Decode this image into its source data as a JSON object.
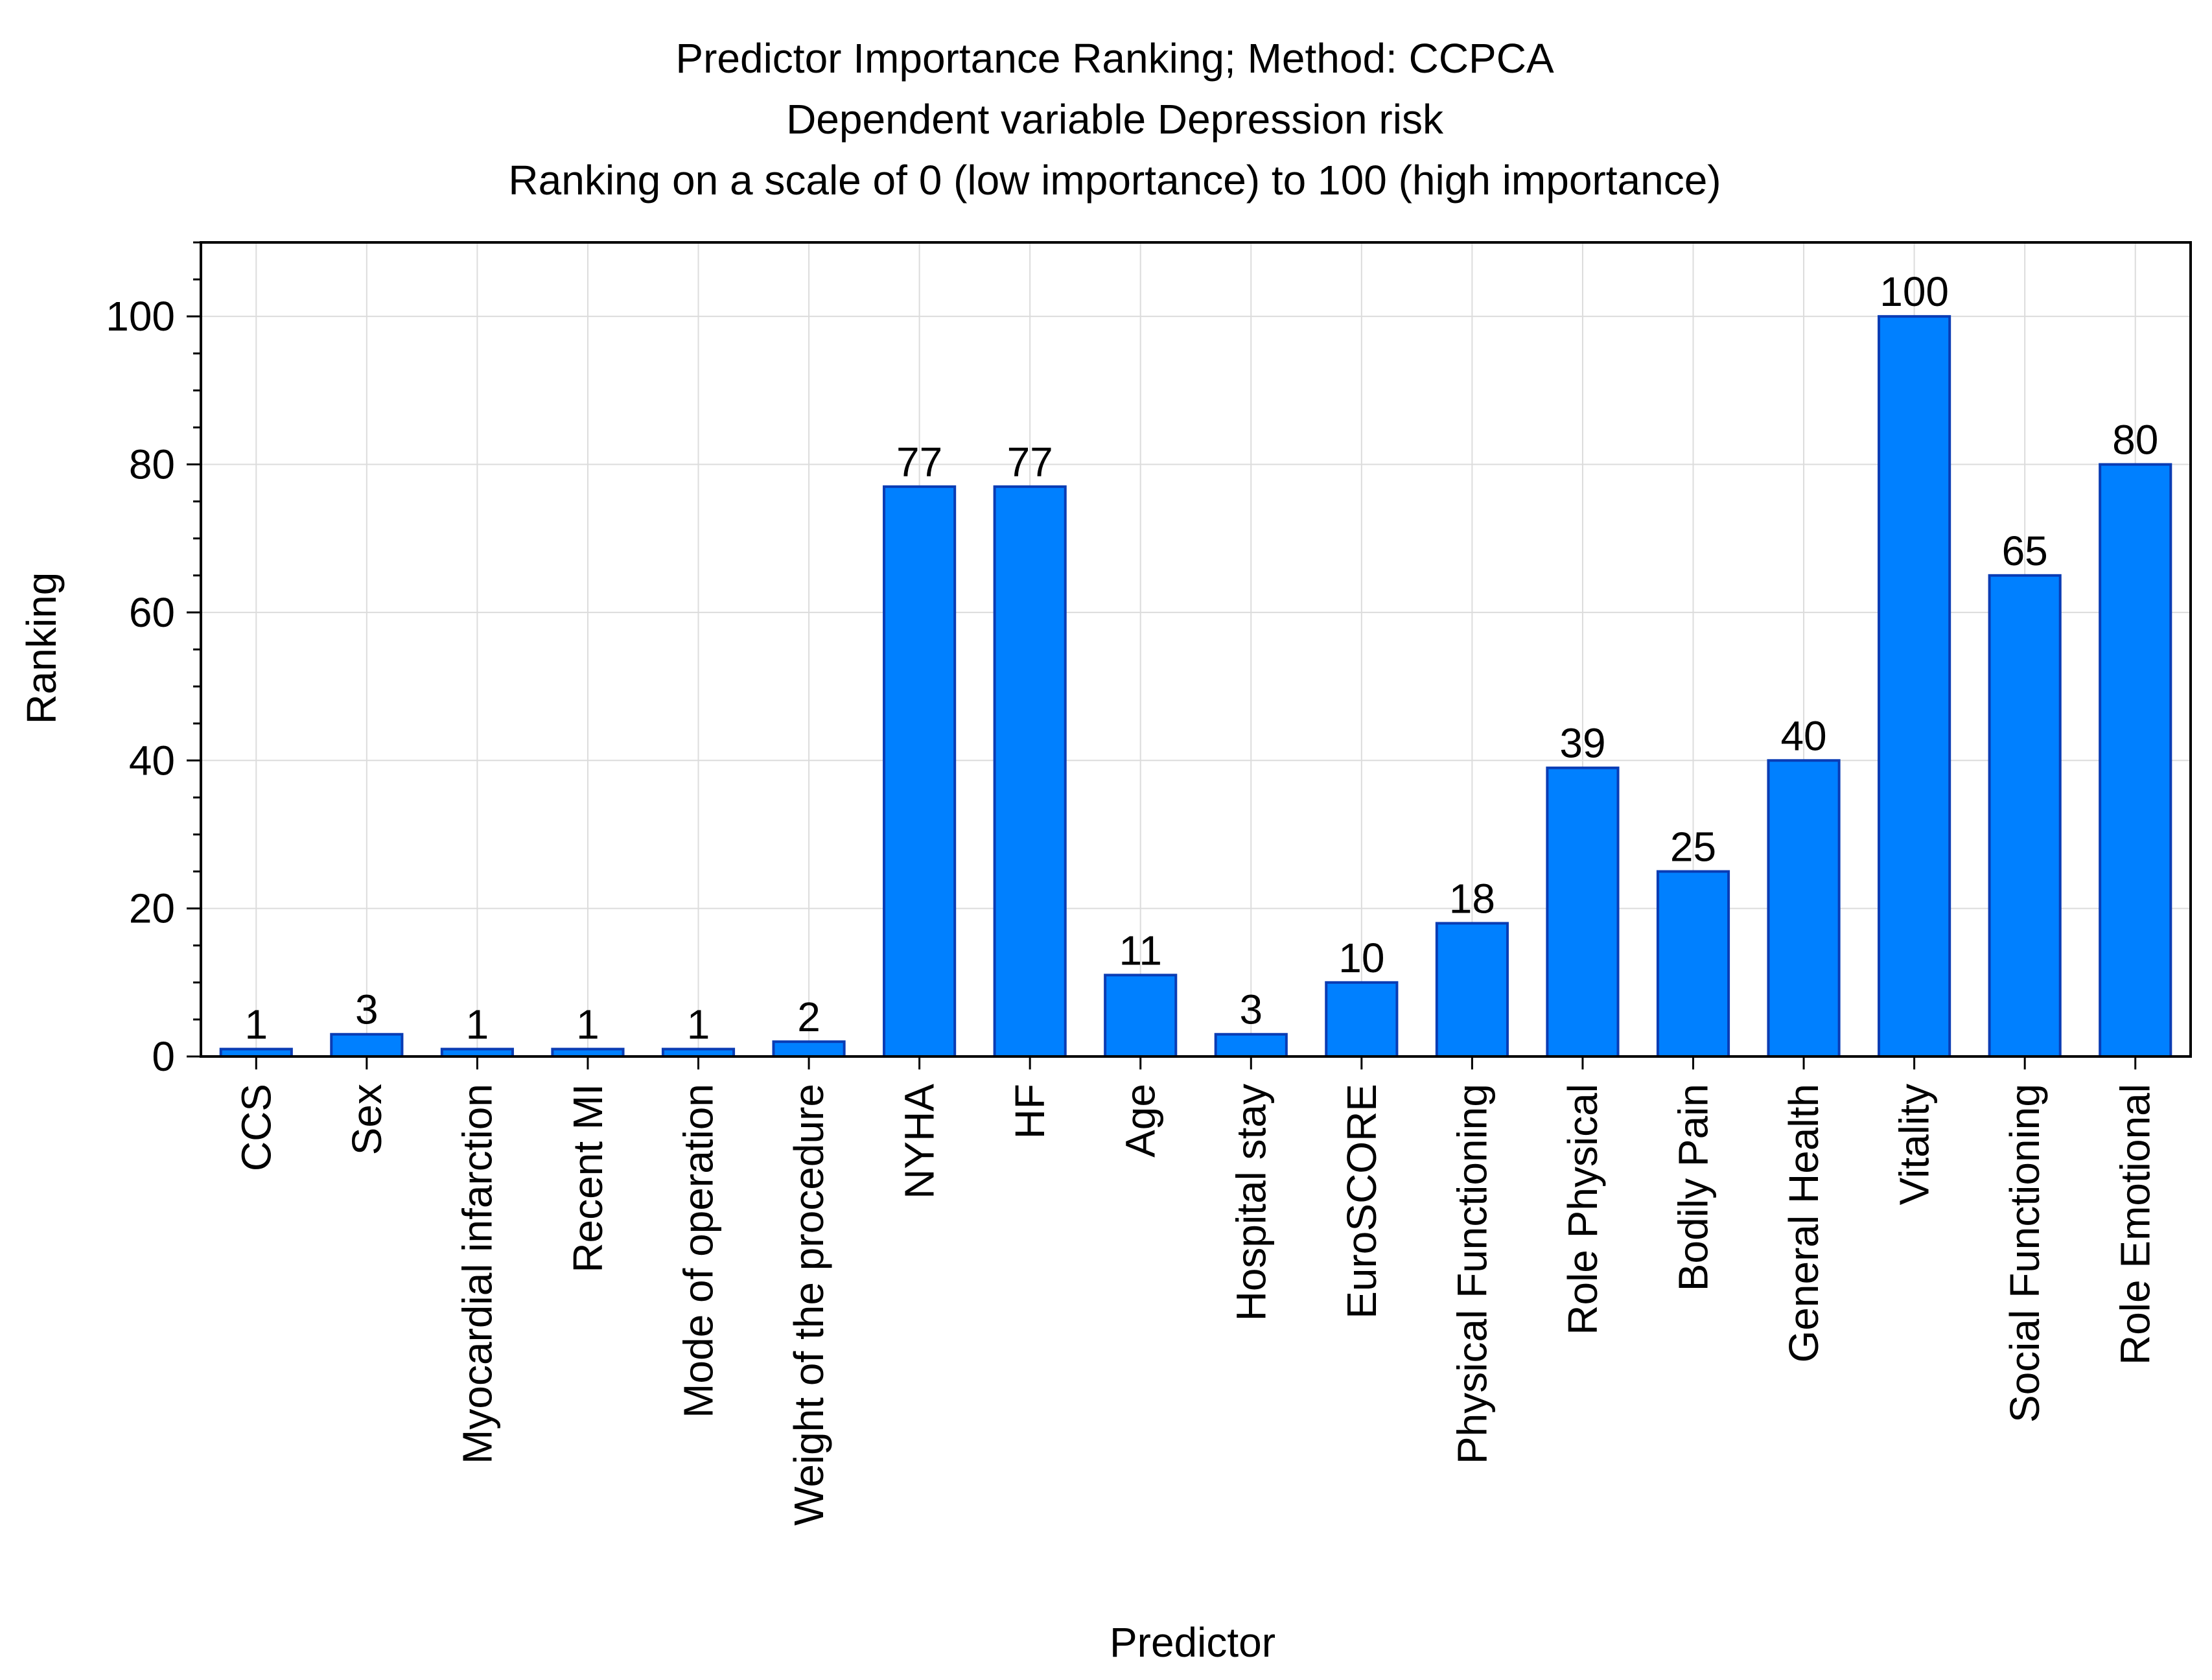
{
  "chart_data": {
    "type": "bar",
    "title_lines": [
      "Predictor Importance Ranking; Method: CCPCA",
      "Dependent variable   Depression risk",
      "Ranking on a scale of 0 (low importance) to 100 (high importance)"
    ],
    "xlabel": "Predictor",
    "ylabel": "Ranking",
    "ylim": [
      0,
      110
    ],
    "yticks": [
      0,
      20,
      40,
      60,
      80,
      100
    ],
    "grid": true,
    "bar_color": "#0080ff",
    "bar_edge_color": "#0a3cb4",
    "categories": [
      "CCS",
      "Sex",
      "Myocardial infarction",
      "Recent MI",
      "Mode of operation",
      "Weight of the procedure",
      "NYHA",
      "HF",
      "Age",
      "Hospital stay",
      "EuroSCORE",
      "Physical Functioning",
      "Role Physical",
      "Bodily Pain",
      "General Health",
      "Vitality",
      "Social Functioning",
      "Role Emotional"
    ],
    "values": [
      1,
      3,
      1,
      1,
      1,
      2,
      77,
      77,
      11,
      3,
      10,
      18,
      39,
      25,
      40,
      100,
      65,
      80
    ],
    "data_labels": [
      "1",
      "3",
      "1",
      "1",
      "1",
      "2",
      "77",
      "77",
      "11",
      "3",
      "10",
      "18",
      "39",
      "25",
      "40",
      "100",
      "65",
      "80"
    ]
  }
}
